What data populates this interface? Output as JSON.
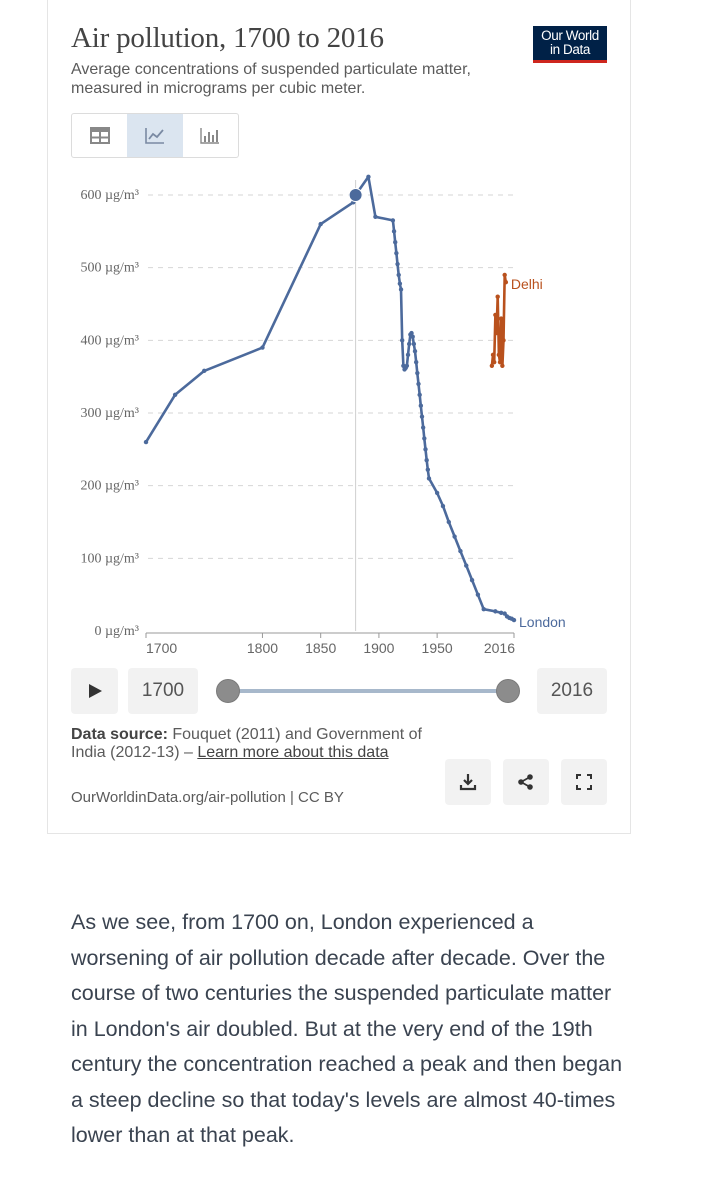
{
  "header": {
    "title": "Air pollution, 1700 to 2016",
    "subtitle": "Average concentrations of suspended particulate matter, measured in micrograms per cubic meter.",
    "logo_line1": "Our World",
    "logo_line2": "in Data"
  },
  "tabs": [
    {
      "icon": "table-icon",
      "active": false
    },
    {
      "icon": "line-chart-icon",
      "active": true
    },
    {
      "icon": "bar-chart-icon",
      "active": false
    }
  ],
  "chart_data": {
    "type": "line",
    "title": "Air pollution, 1700 to 2016",
    "ylabel": "",
    "xlabel": "",
    "xlim": [
      1700,
      2016
    ],
    "ylim": [
      0,
      600
    ],
    "x_ticks": [
      "1700",
      "1800",
      "1850",
      "1900",
      "1950",
      "2016"
    ],
    "x_tick_values": [
      1700,
      1800,
      1850,
      1900,
      1950,
      2016
    ],
    "y_ticks": [
      "0 µg/m³",
      "100 µg/m³",
      "200 µg/m³",
      "300 µg/m³",
      "400 µg/m³",
      "500 µg/m³",
      "600 µg/m³"
    ],
    "y_tick_values": [
      0,
      100,
      200,
      300,
      400,
      500,
      600
    ],
    "grid": "horizontal-dashed",
    "hover_year": 1880,
    "series": [
      {
        "name": "London",
        "color": "#4c6a9c",
        "points": [
          [
            1700,
            260
          ],
          [
            1725,
            325
          ],
          [
            1750,
            358
          ],
          [
            1800,
            390
          ],
          [
            1850,
            560
          ],
          [
            1878,
            590
          ],
          [
            1880,
            600
          ],
          [
            1891,
            625
          ],
          [
            1897,
            570
          ],
          [
            1912,
            565
          ],
          [
            1913,
            550
          ],
          [
            1914,
            535
          ],
          [
            1915,
            520
          ],
          [
            1916,
            505
          ],
          [
            1917,
            490
          ],
          [
            1918,
            478
          ],
          [
            1919,
            470
          ],
          [
            1920,
            400
          ],
          [
            1921,
            365
          ],
          [
            1922,
            360
          ],
          [
            1923,
            362
          ],
          [
            1924,
            365
          ],
          [
            1925,
            380
          ],
          [
            1926,
            395
          ],
          [
            1927,
            408
          ],
          [
            1928,
            410
          ],
          [
            1929,
            405
          ],
          [
            1930,
            395
          ],
          [
            1931,
            385
          ],
          [
            1932,
            370
          ],
          [
            1933,
            355
          ],
          [
            1934,
            340
          ],
          [
            1935,
            325
          ],
          [
            1936,
            310
          ],
          [
            1937,
            295
          ],
          [
            1938,
            280
          ],
          [
            1939,
            265
          ],
          [
            1940,
            250
          ],
          [
            1941,
            235
          ],
          [
            1942,
            222
          ],
          [
            1943,
            210
          ],
          [
            1950,
            190
          ],
          [
            1955,
            172
          ],
          [
            1960,
            150
          ],
          [
            1965,
            130
          ],
          [
            1970,
            110
          ],
          [
            1975,
            90
          ],
          [
            1980,
            70
          ],
          [
            1985,
            50
          ],
          [
            1990,
            30
          ],
          [
            2000,
            27
          ],
          [
            2005,
            25
          ],
          [
            2008,
            24
          ],
          [
            2010,
            20
          ],
          [
            2012,
            18
          ],
          [
            2014,
            17
          ],
          [
            2016,
            15
          ]
        ]
      },
      {
        "name": "Delhi",
        "color": "#b9511d",
        "points": [
          [
            1997,
            365
          ],
          [
            1998,
            380
          ],
          [
            1999,
            370
          ],
          [
            2000,
            435
          ],
          [
            2001,
            410
          ],
          [
            2002,
            460
          ],
          [
            2003,
            380
          ],
          [
            2004,
            370
          ],
          [
            2005,
            430
          ],
          [
            2006,
            365
          ],
          [
            2007,
            400
          ],
          [
            2008,
            490
          ],
          [
            2009,
            480
          ]
        ]
      }
    ]
  },
  "timeline": {
    "start_label": "1700",
    "end_label": "2016",
    "start_value": 1700,
    "end_value": 2016
  },
  "source": {
    "label": "Data source:",
    "text": " Fouquet (2011) and Government of India (2012-13) – ",
    "link": "Learn more about this data",
    "url": "OurWorldinData.org/air-pollution | CC BY"
  },
  "actions": [
    {
      "icon": "download-icon"
    },
    {
      "icon": "share-icon"
    },
    {
      "icon": "fullscreen-icon"
    }
  ],
  "prose": "As we see, from 1700 on, London experienced a worsening of air pollution decade after decade. Over the course of two centuries the suspended particulate matter in London's air doubled. But at the very end of the 19th century the concentration reached a peak and then began a steep decline so that today's levels are almost 40-times lower than at that peak."
}
